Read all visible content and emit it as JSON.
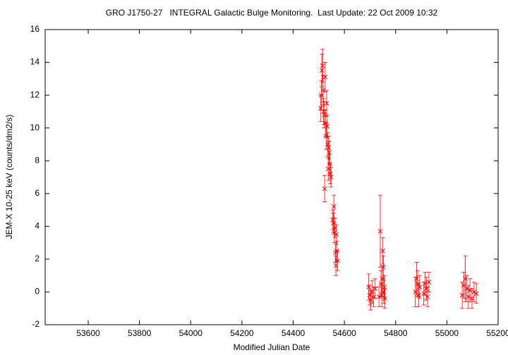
{
  "chart_data": {
    "type": "errorbar-scatter",
    "title": "GRO J1750-27   INTEGRAL Galactic Bulge Monitoring.  Last Update: 22 Oct 2009 10:32",
    "xlabel": "Modified Julian Date",
    "ylabel": "JEM-X 10-25 keV (counts/dm2/s)",
    "color": "#ff0000",
    "xlim": [
      53432,
      55200
    ],
    "ylim": [
      -2,
      16
    ],
    "xticks": [
      53600,
      53800,
      54000,
      54200,
      54400,
      54600,
      54800,
      55000,
      55200
    ],
    "yticks": [
      -2,
      0,
      2,
      4,
      6,
      8,
      10,
      12,
      14,
      16
    ],
    "x": [
      54508,
      54510,
      54512,
      54515,
      54517,
      54519,
      54521,
      54523,
      54525,
      54527,
      54529,
      54531,
      54533,
      54535,
      54537,
      54539,
      54541,
      54543,
      54545,
      54548,
      54555,
      54557,
      54559,
      54561,
      54563,
      54565,
      54567,
      54569,
      54571,
      54573,
      54695,
      54699,
      54703,
      54708,
      54714,
      54720,
      54735,
      54740,
      54743,
      54746,
      54748,
      54750,
      54752,
      54754,
      54756,
      54758,
      54877,
      54882,
      54886,
      54890,
      54894,
      54910,
      54915,
      54920,
      54925,
      54930,
      55060,
      55066,
      55072,
      55078,
      55084,
      55090,
      55098,
      55106,
      55115
    ],
    "values": [
      11.2,
      12.0,
      13.5,
      13.8,
      12.3,
      11.0,
      10.8,
      6.3,
      13.1,
      10.3,
      9.5,
      11.5,
      10.1,
      9.0,
      7.5,
      8.8,
      8.5,
      7.8,
      7.2,
      7.0,
      4.4,
      4.2,
      5.2,
      3.6,
      3.9,
      2.4,
      1.6,
      3.5,
      2.5,
      1.9,
      0.3,
      -0.2,
      -0.5,
      0.0,
      -0.3,
      0.2,
      -0.3,
      3.7,
      0.5,
      -0.2,
      0.8,
      2.5,
      1.5,
      0.0,
      0.3,
      -0.4,
      0.0,
      0.8,
      0.5,
      -0.2,
      0.3,
      -0.1,
      0.5,
      0.2,
      -0.3,
      0.6,
      -0.2,
      0.4,
      0.8,
      0.2,
      -0.3,
      0.1,
      -0.4,
      0.0,
      -0.1
    ],
    "errors": [
      0.8,
      0.9,
      1.0,
      1.0,
      0.9,
      0.8,
      0.8,
      0.8,
      0.9,
      0.8,
      0.8,
      0.8,
      0.7,
      0.7,
      0.7,
      0.7,
      0.7,
      0.6,
      0.6,
      0.6,
      0.6,
      0.6,
      0.7,
      0.6,
      0.6,
      0.6,
      0.6,
      0.6,
      0.6,
      0.6,
      0.8,
      0.6,
      0.6,
      0.7,
      0.6,
      0.6,
      0.6,
      2.2,
      0.8,
      0.7,
      0.8,
      0.8,
      0.7,
      0.7,
      0.7,
      0.6,
      0.9,
      1.0,
      0.8,
      0.7,
      0.7,
      0.7,
      0.7,
      0.7,
      0.6,
      0.6,
      0.8,
      0.8,
      1.4,
      0.8,
      0.7,
      0.7,
      0.6,
      0.6,
      0.6
    ]
  }
}
